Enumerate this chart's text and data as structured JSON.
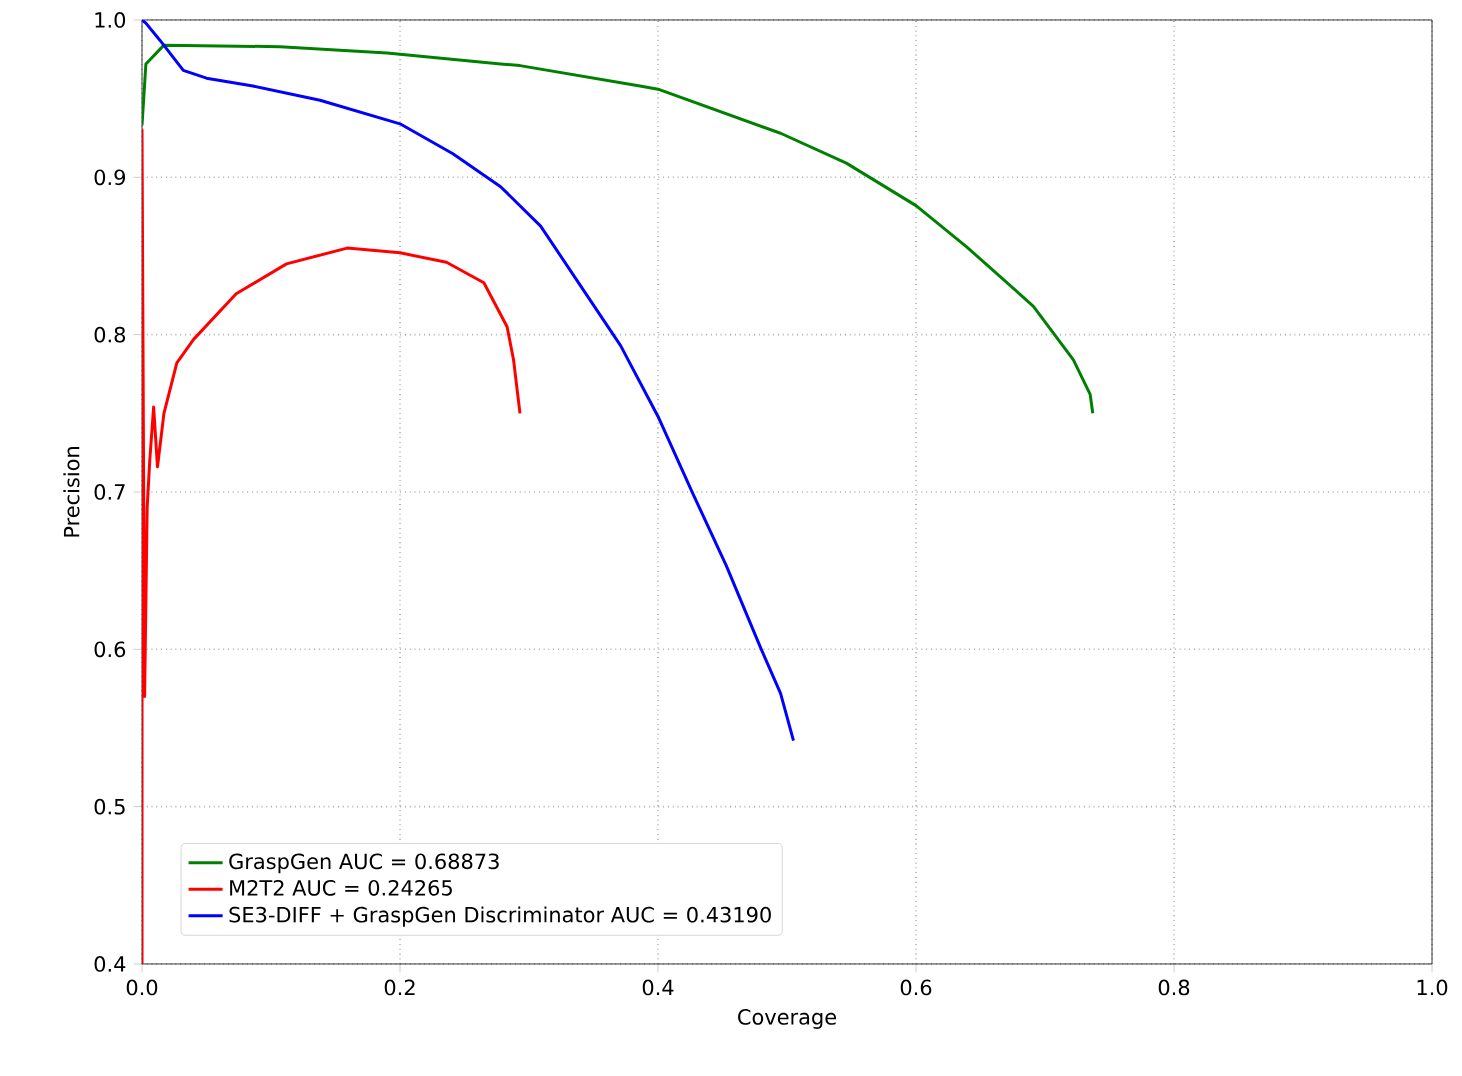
{
  "chart_data": {
    "type": "line",
    "xlabel": "Coverage",
    "ylabel": "Precision",
    "xlim": [
      0,
      1
    ],
    "ylim": [
      0.4,
      1
    ],
    "xticks": [
      {
        "value": 0,
        "label": "0.0"
      },
      {
        "value": 0.2,
        "label": "0.2"
      },
      {
        "value": 0.4,
        "label": "0.4"
      },
      {
        "value": 0.6,
        "label": "0.6"
      },
      {
        "value": 0.8,
        "label": "0.8"
      },
      {
        "value": 1,
        "label": "1.0"
      }
    ],
    "yticks": [
      0.4,
      0.5,
      0.6,
      0.7,
      0.8,
      0.9,
      {
        "value": 1,
        "label": "1.0"
      }
    ],
    "grid": true,
    "legend": "bottom left",
    "marker": "none",
    "line_style": "solid",
    "series": [
      {
        "name": "GraspGen AUC = 0.68873",
        "color": "#008000",
        "x": [
          0,
          0.003,
          0.017,
          0.107,
          0.19,
          0.278,
          0.293,
          0.386,
          0.4,
          0.495,
          0.546,
          0.6,
          0.639,
          0.691,
          0.722,
          0.735,
          0.737
        ],
        "values": [
          0.933,
          0.972,
          0.984,
          0.983,
          0.979,
          0.972,
          0.971,
          0.958,
          0.956,
          0.928,
          0.909,
          0.882,
          0.856,
          0.818,
          0.784,
          0.762,
          0.75
        ]
      },
      {
        "name": "M2T2 AUC = 0.24265",
        "color": "#ff0000",
        "x": [
          0,
          0,
          0.002,
          0.004,
          0.006,
          0.009,
          0.012,
          0.017,
          0.027,
          0.04,
          0.073,
          0.112,
          0.159,
          0.2,
          0.236,
          0.265,
          0.283,
          0.288,
          0.293
        ],
        "values": [
          0.4,
          0.93,
          0.57,
          0.69,
          0.72,
          0.754,
          0.716,
          0.75,
          0.782,
          0.797,
          0.826,
          0.845,
          0.855,
          0.852,
          0.846,
          0.833,
          0.805,
          0.784,
          0.75
        ]
      },
      {
        "name": "SE3-DIFF + GraspGen Discriminator AUC = 0.43190",
        "color": "#0000ff",
        "x": [
          0,
          0.003,
          0.014,
          0.032,
          0.05,
          0.086,
          0.138,
          0.2,
          0.241,
          0.278,
          0.309,
          0.34,
          0.371,
          0.4,
          0.427,
          0.453,
          0.479,
          0.495,
          0.505
        ],
        "values": [
          1.0,
          0.998,
          0.987,
          0.968,
          0.963,
          0.958,
          0.949,
          0.934,
          0.915,
          0.894,
          0.869,
          0.831,
          0.793,
          0.748,
          0.699,
          0.653,
          0.602,
          0.572,
          0.542
        ]
      }
    ]
  }
}
